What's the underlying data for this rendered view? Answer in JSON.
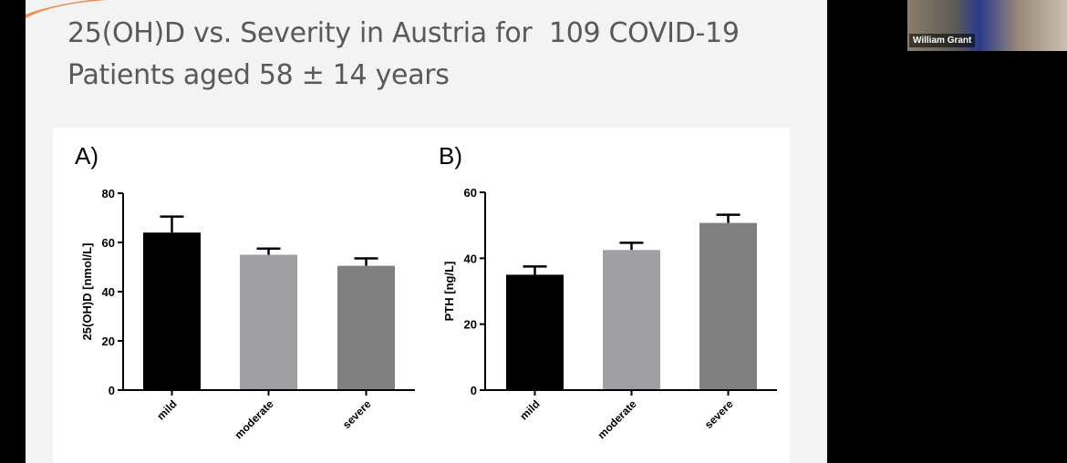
{
  "slide": {
    "title_line1": "25(OH)D vs. Severity in Austria for  109 COVID-19",
    "title_line2": "Patients aged 58 ± 14 years"
  },
  "webcam": {
    "participant_name": "William Grant"
  },
  "colors": {
    "mild": "#000000",
    "moderate": "#a0a0a4",
    "severe": "#808080",
    "accent": "#e8762b"
  },
  "chart_data": [
    {
      "panel_label": "A)",
      "type": "bar",
      "categories": [
        "mild",
        "moderate",
        "severe"
      ],
      "values": [
        64,
        55,
        50.5
      ],
      "error_upper": [
        70.5,
        57.5,
        53.5
      ],
      "ylabel": "25(OH)D [nmol/L]",
      "ylim": [
        0,
        80
      ],
      "yticks": [
        "0",
        "20",
        "40",
        "60",
        "80"
      ],
      "grid": false
    },
    {
      "panel_label": "B)",
      "type": "bar",
      "categories": [
        "mild",
        "moderate",
        "severe"
      ],
      "values": [
        35,
        42.5,
        50.7
      ],
      "error_upper": [
        37.5,
        44.7,
        53.2
      ],
      "ylabel": "PTH [ng/L]",
      "ylim": [
        0,
        60
      ],
      "yticks": [
        "0",
        "20",
        "40",
        "60"
      ],
      "grid": false
    }
  ]
}
